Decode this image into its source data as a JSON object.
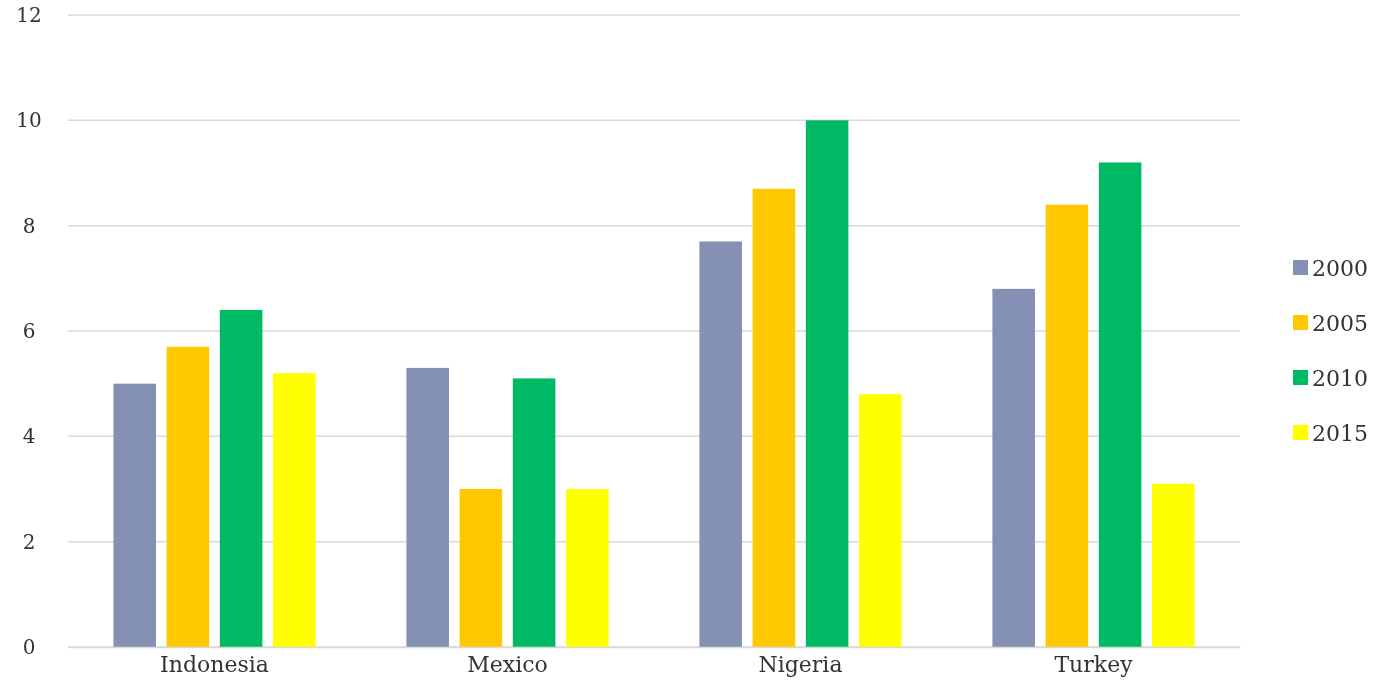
{
  "chart_data": {
    "type": "bar",
    "categories": [
      "Indonesia",
      "Mexico",
      "Nigeria",
      "Turkey"
    ],
    "series": [
      {
        "name": "2000",
        "color": "#8591b4",
        "values": [
          5.0,
          5.3,
          7.7,
          6.8
        ]
      },
      {
        "name": "2005",
        "color": "#ffc800",
        "values": [
          5.7,
          3.0,
          8.7,
          8.4
        ]
      },
      {
        "name": "2010",
        "color": "#00b964",
        "values": [
          6.4,
          5.1,
          10.0,
          9.2
        ]
      },
      {
        "name": "2015",
        "color": "#ffff00",
        "values": [
          5.2,
          3.0,
          4.8,
          3.1
        ]
      }
    ],
    "ylim": [
      0,
      12
    ],
    "yticks": [
      0,
      2,
      4,
      6,
      8,
      10,
      12
    ],
    "grid": "y",
    "legend": "right"
  }
}
